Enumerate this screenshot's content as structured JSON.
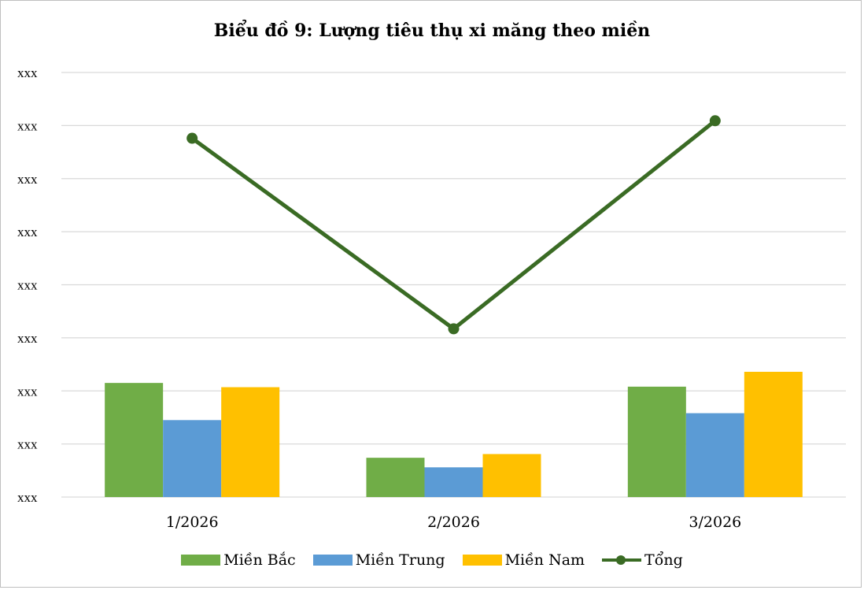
{
  "chart_data": {
    "type": "bar",
    "title": "Biểu đồ 9: Lượng tiêu thụ xi măng theo miền",
    "categories": [
      "1/2026",
      "2/2026",
      "3/2026"
    ],
    "y_tick_labels": [
      "xxx",
      "xxx",
      "xxx",
      "xxx",
      "xxx",
      "xxx",
      "xxx",
      "xxx",
      "xxx"
    ],
    "ylim": [
      0,
      8
    ],
    "grid": true,
    "legend_position": "bottom",
    "series": [
      {
        "name": "Miền Bắc",
        "type": "bar",
        "color": "#70ad47",
        "values": [
          2.15,
          0.74,
          2.08
        ]
      },
      {
        "name": "Miền Trung",
        "type": "bar",
        "color": "#5b9bd5",
        "values": [
          1.45,
          0.56,
          1.58
        ]
      },
      {
        "name": "Miền Nam",
        "type": "bar",
        "color": "#ffc000",
        "values": [
          2.07,
          0.81,
          2.36
        ]
      },
      {
        "name": "Tổng",
        "type": "line",
        "color": "#3a6b24",
        "values": [
          6.76,
          3.17,
          7.09
        ]
      }
    ]
  }
}
